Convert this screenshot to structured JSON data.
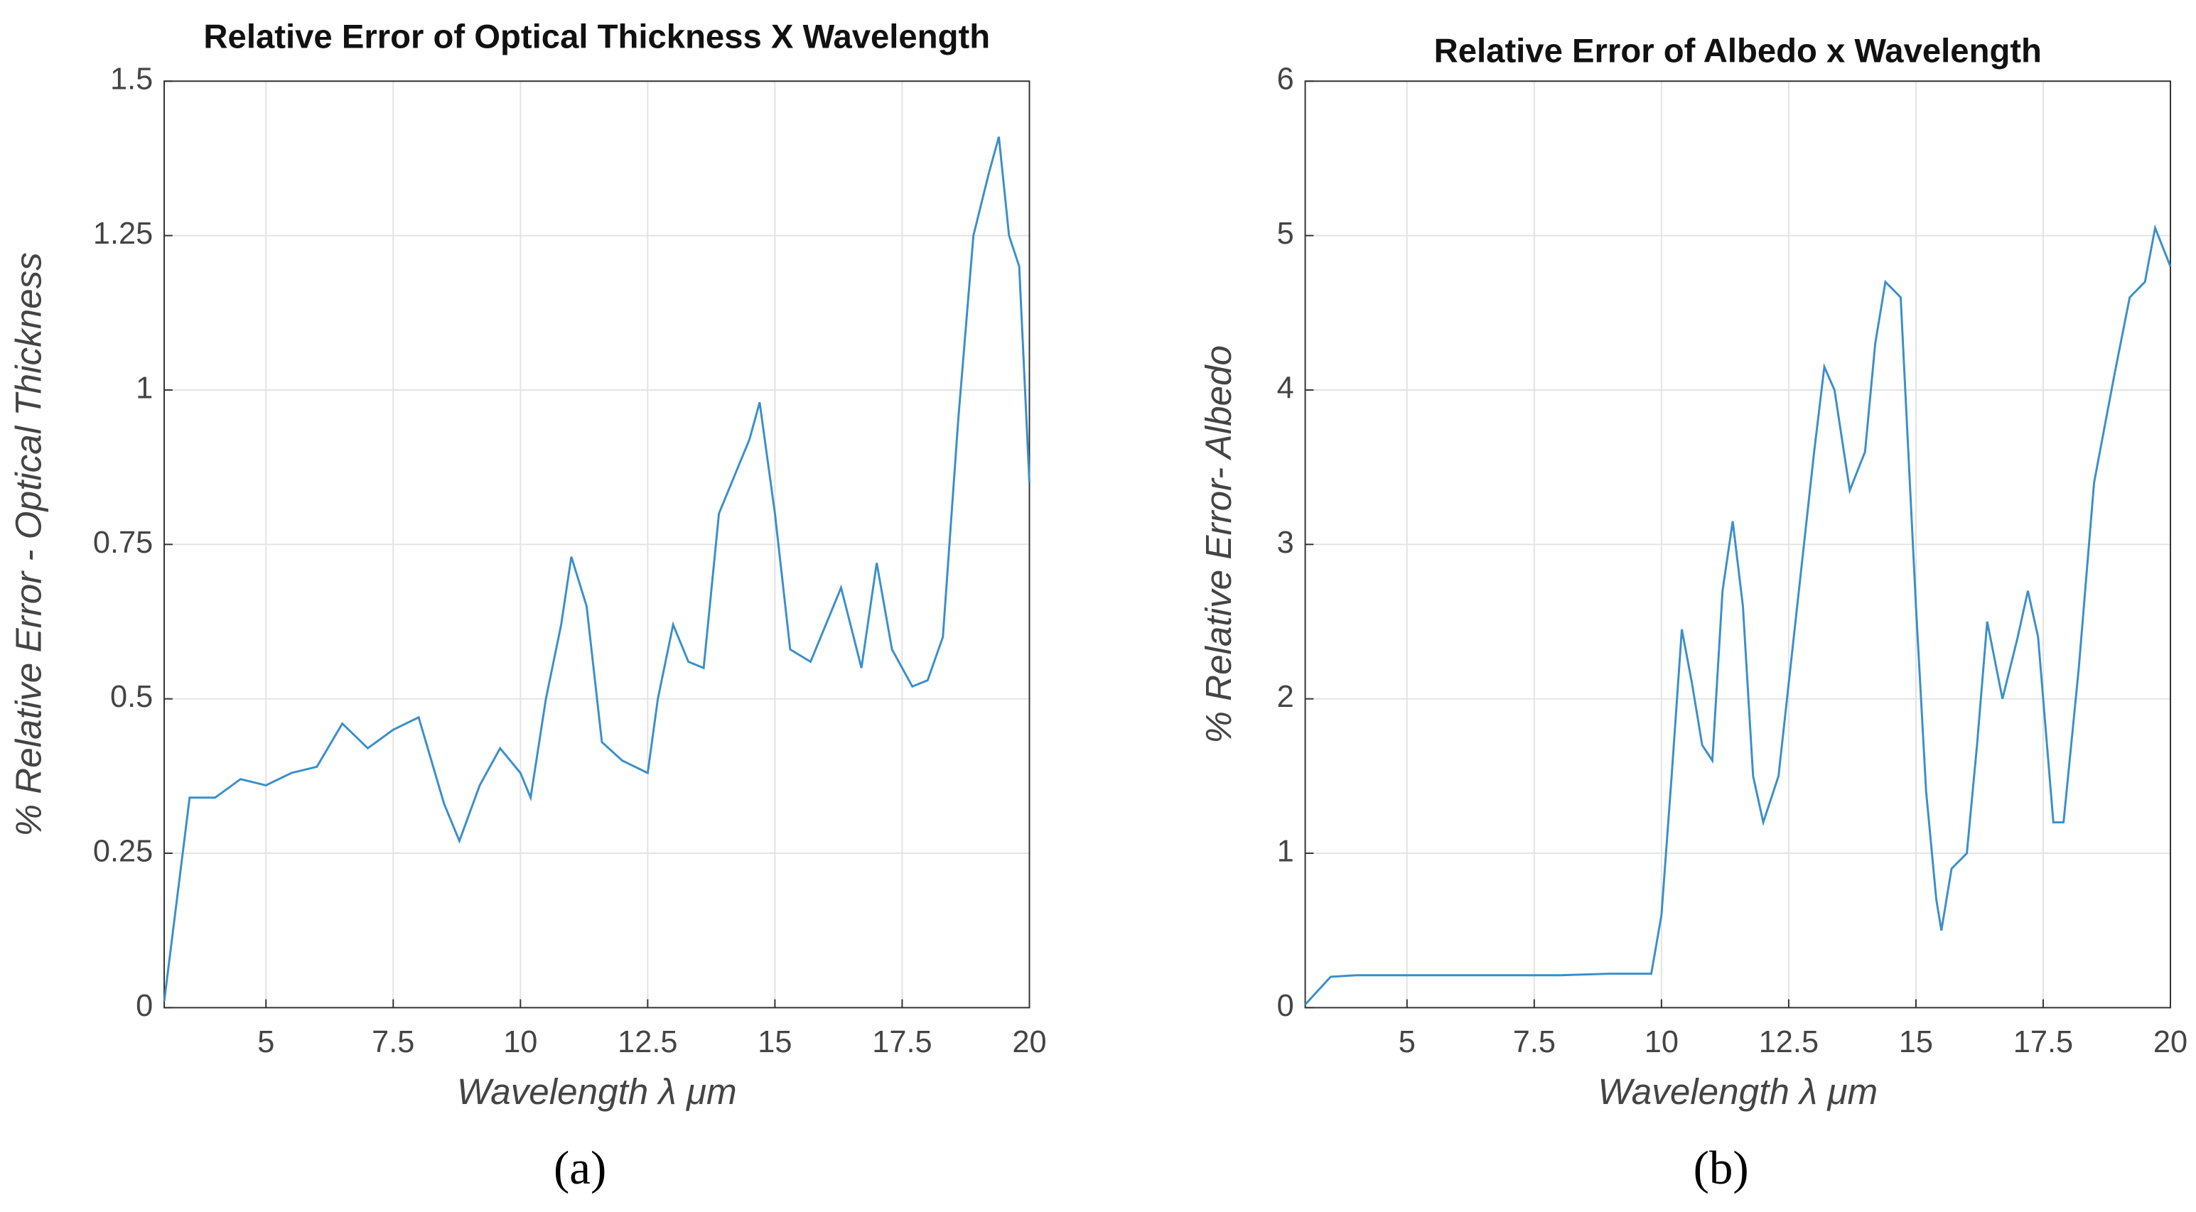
{
  "chart_data": [
    {
      "type": "line",
      "title": "Relative Error of Optical Thickness X Wavelength",
      "x_label": "Wavelength λ μm",
      "y_label": "% Relative Error - Optical Thickness",
      "caption": "(a)",
      "xlim": [
        3,
        20
      ],
      "xticks": [
        5,
        7.5,
        10,
        12.5,
        15,
        17.5,
        20
      ],
      "ylim": [
        0,
        1.5
      ],
      "yticks": [
        0,
        0.25,
        0.5,
        0.75,
        1,
        1.25,
        1.5
      ],
      "grid": true,
      "color": "#3a8fc8",
      "x": [
        3.0,
        3.5,
        4.0,
        4.5,
        5.0,
        5.5,
        6.0,
        6.5,
        7.0,
        7.5,
        8.0,
        8.5,
        8.8,
        9.2,
        9.6,
        10.0,
        10.2,
        10.5,
        10.8,
        11.0,
        11.3,
        11.6,
        12.0,
        12.5,
        12.7,
        13.0,
        13.3,
        13.6,
        13.9,
        14.2,
        14.5,
        14.7,
        15.0,
        15.3,
        15.7,
        16.0,
        16.3,
        16.7,
        17.0,
        17.3,
        17.7,
        18.0,
        18.3,
        18.6,
        18.9,
        19.2,
        19.4,
        19.6,
        19.8,
        20.0
      ],
      "values": [
        0.01,
        0.34,
        0.34,
        0.37,
        0.36,
        0.38,
        0.39,
        0.46,
        0.42,
        0.45,
        0.47,
        0.33,
        0.27,
        0.36,
        0.42,
        0.38,
        0.34,
        0.5,
        0.62,
        0.73,
        0.65,
        0.43,
        0.4,
        0.38,
        0.5,
        0.62,
        0.56,
        0.55,
        0.8,
        0.86,
        0.92,
        0.98,
        0.8,
        0.58,
        0.56,
        0.62,
        0.68,
        0.55,
        0.72,
        0.58,
        0.52,
        0.53,
        0.6,
        0.95,
        1.25,
        1.35,
        1.41,
        1.25,
        1.2,
        0.85
      ]
    },
    {
      "type": "line",
      "title": "Relative Error of Albedo x Wavelength",
      "x_label": "Wavelength λ μm",
      "y_label": "% Relative Error- Albedo",
      "caption": "(b)",
      "xlim": [
        3,
        20
      ],
      "xticks": [
        5,
        7.5,
        10,
        12.5,
        15,
        17.5,
        20
      ],
      "ylim": [
        0,
        6
      ],
      "yticks": [
        0,
        1,
        2,
        3,
        4,
        5,
        6
      ],
      "grid": true,
      "color": "#3a8fc8",
      "x": [
        3.0,
        3.5,
        4.0,
        5.0,
        6.0,
        7.0,
        8.0,
        9.0,
        9.8,
        10.0,
        10.2,
        10.4,
        10.6,
        10.8,
        11.0,
        11.2,
        11.4,
        11.6,
        11.8,
        12.0,
        12.3,
        12.6,
        13.0,
        13.2,
        13.4,
        13.7,
        14.0,
        14.2,
        14.4,
        14.7,
        15.0,
        15.2,
        15.4,
        15.5,
        15.7,
        16.0,
        16.2,
        16.4,
        16.7,
        17.0,
        17.2,
        17.4,
        17.7,
        17.9,
        18.2,
        18.5,
        18.9,
        19.2,
        19.5,
        19.7,
        20.0
      ],
      "values": [
        0.02,
        0.2,
        0.21,
        0.21,
        0.21,
        0.21,
        0.21,
        0.22,
        0.22,
        0.6,
        1.5,
        2.45,
        2.1,
        1.7,
        1.6,
        2.7,
        3.15,
        2.6,
        1.5,
        1.2,
        1.5,
        2.4,
        3.6,
        4.15,
        4.0,
        3.35,
        3.6,
        4.3,
        4.7,
        4.6,
        2.6,
        1.4,
        0.7,
        0.5,
        0.9,
        1.0,
        1.7,
        2.5,
        2.0,
        2.4,
        2.7,
        2.4,
        1.2,
        1.2,
        2.2,
        3.4,
        4.1,
        4.6,
        4.7,
        5.05,
        4.8
      ]
    }
  ]
}
